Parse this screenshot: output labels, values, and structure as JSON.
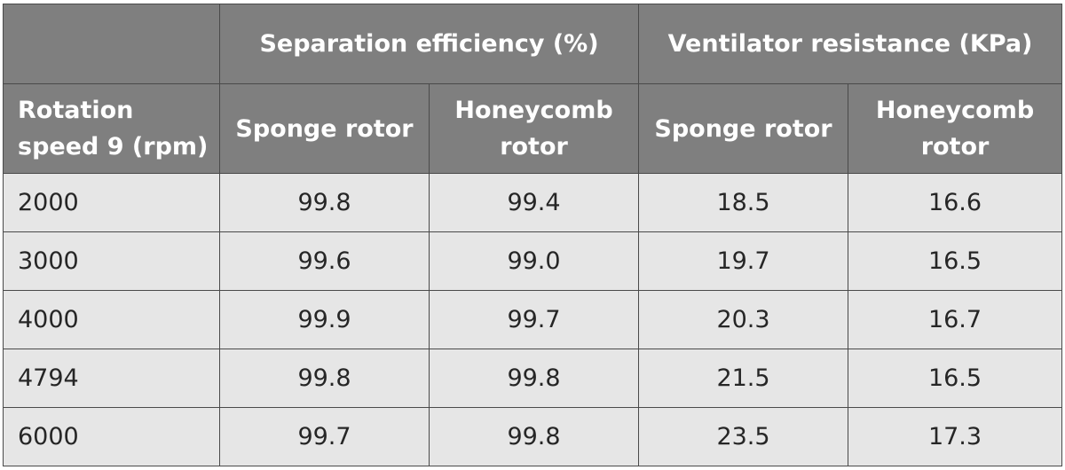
{
  "table": {
    "group_headers": {
      "blank": "",
      "separation": "Separation efficiency (%)",
      "ventilator": "Ventilator resistance (KPa)"
    },
    "sub_headers": {
      "rotation_line1": "Rotation",
      "rotation_line2": "speed 9 (rpm)",
      "sep_sponge": "Sponge rotor",
      "sep_honey_line1": "Honeycomb",
      "sep_honey_line2": "rotor",
      "vent_sponge": "Sponge rotor",
      "vent_honey_line1": "Honeycomb",
      "vent_honey_line2": "rotor"
    },
    "rows": [
      [
        "2000",
        "99.8",
        "99.4",
        "18.5",
        "16.6"
      ],
      [
        "3000",
        "99.6",
        "99.0",
        "19.7",
        "16.5"
      ],
      [
        "4000",
        "99.9",
        "99.7",
        "20.3",
        "16.7"
      ],
      [
        "4794",
        "99.8",
        "99.8",
        "21.5",
        "16.5"
      ],
      [
        "6000",
        "99.7",
        "99.8",
        "23.5",
        "17.3"
      ]
    ]
  }
}
